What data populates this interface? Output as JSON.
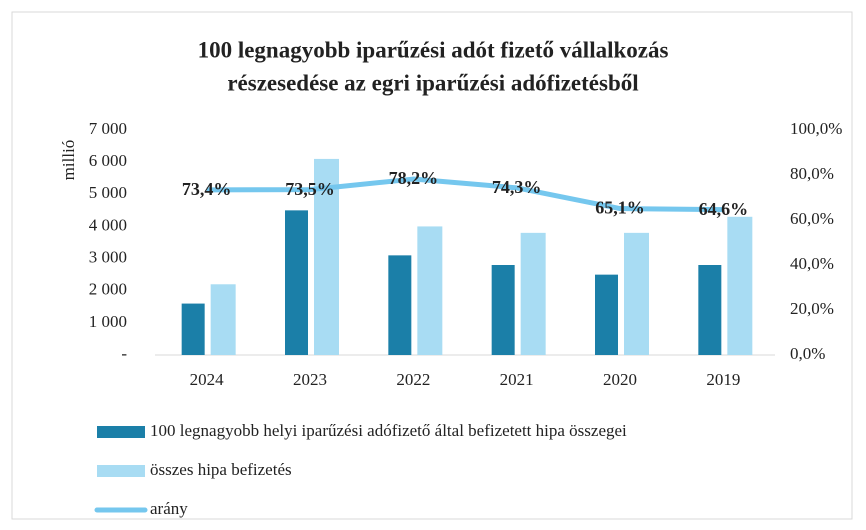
{
  "chart_data": {
    "type": "bar_line",
    "title": [
      "100 legnagyobb iparűzési adót fizető vállalkozás",
      "részesedése az egri iparűzési adófizetésből"
    ],
    "ylabel": "millió",
    "categories": [
      "2024",
      "2023",
      "2022",
      "2021",
      "2020",
      "2019"
    ],
    "series": [
      {
        "name": "100 legnagyobb helyi iparűzési adófizető által befizetett hipa összegei",
        "type": "bar",
        "color": "#1b7fa8",
        "values": [
          1600,
          4500,
          3100,
          2800,
          2500,
          2800
        ]
      },
      {
        "name": "összes hipa befizetés",
        "type": "bar",
        "color": "#a8dcf3",
        "values": [
          2200,
          6100,
          4000,
          3800,
          3800,
          4300
        ]
      },
      {
        "name": "arány",
        "type": "line",
        "axis": "y2",
        "color": "#75c7ee",
        "values": [
          73.4,
          73.5,
          78.2,
          74.3,
          65.1,
          64.6
        ],
        "value_labels": [
          "73,4%",
          "73,5%",
          "78,2%",
          "74,3%",
          "65,1%",
          "64,6%"
        ]
      }
    ],
    "ylim": [
      0,
      7000
    ],
    "yticks": [
      {
        "value": 0,
        "label": "-"
      },
      {
        "value": 1000,
        "label": "1 000"
      },
      {
        "value": 2000,
        "label": "2 000"
      },
      {
        "value": 3000,
        "label": "3 000"
      },
      {
        "value": 4000,
        "label": "4 000"
      },
      {
        "value": 5000,
        "label": "5 000"
      },
      {
        "value": 6000,
        "label": "6 000"
      },
      {
        "value": 7000,
        "label": "7 000"
      }
    ],
    "y2lim": [
      0,
      100
    ],
    "y2ticks": [
      {
        "value": 0,
        "label": "0,0%"
      },
      {
        "value": 20,
        "label": "20,0%"
      },
      {
        "value": 40,
        "label": "40,0%"
      },
      {
        "value": 60,
        "label": "60,0%"
      },
      {
        "value": 80,
        "label": "80,0%"
      },
      {
        "value": 100,
        "label": "100,0%"
      }
    ],
    "legend": "bottom"
  }
}
